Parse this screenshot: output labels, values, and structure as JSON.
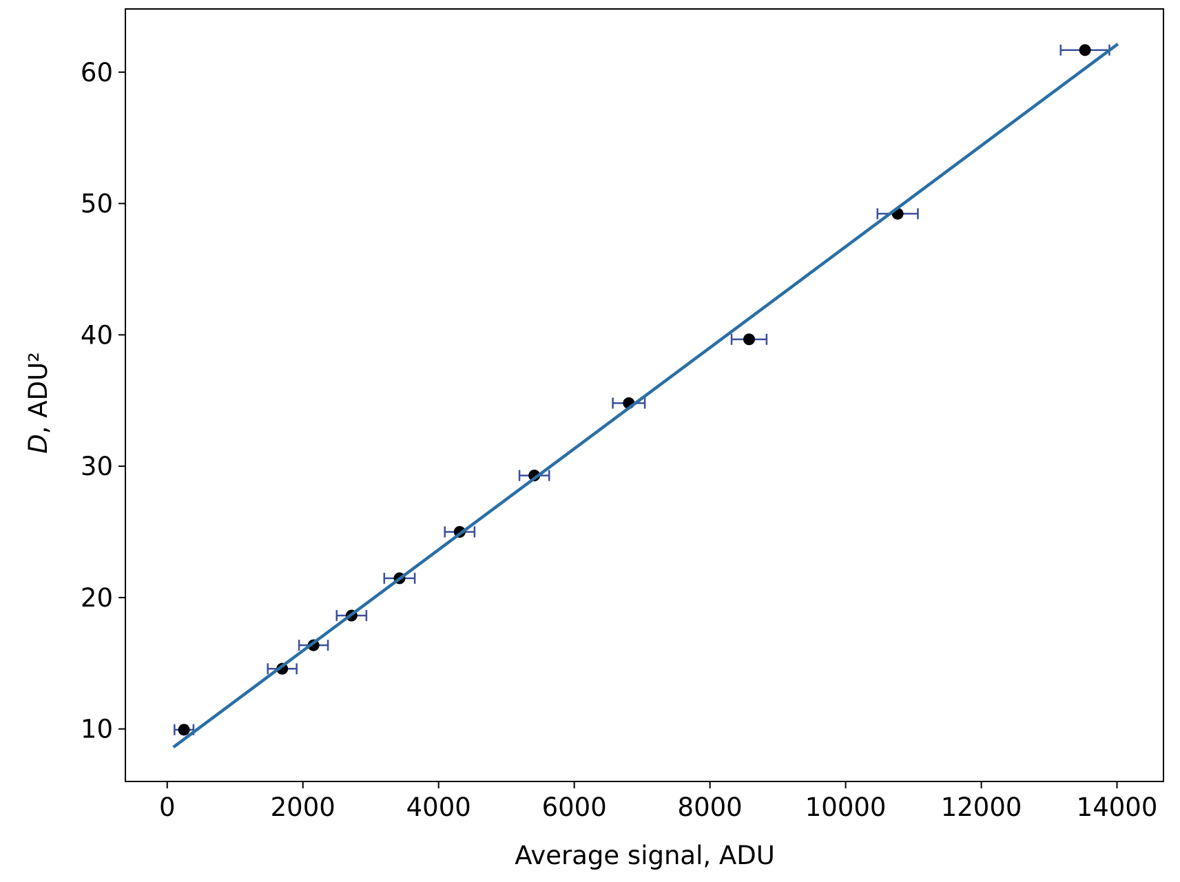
{
  "chart_data": {
    "type": "scatter",
    "x_label": "Average signal, ADU",
    "y_label": {
      "italic": "D",
      "rest": ", ADU²"
    },
    "xlim": [
      -617,
      14685
    ],
    "ylim": [
      6.0,
      64.81
    ],
    "xticks": [
      0,
      2000,
      4000,
      6000,
      8000,
      10000,
      12000,
      14000
    ],
    "yticks": [
      10,
      20,
      30,
      40,
      50,
      60
    ],
    "series": [
      {
        "type": "errorbar",
        "color": "#000000",
        "error_color": "#3a4f9c",
        "x": [
          247,
          1695,
          2156,
          2717,
          3424,
          4311,
          5411,
          6804,
          8577,
          10767,
          13529
        ],
        "values": [
          9.94,
          14.58,
          16.37,
          18.63,
          21.47,
          25.0,
          29.29,
          34.8,
          39.66,
          49.22,
          61.68
        ],
        "xerr": [
          140,
          213,
          213,
          219,
          225,
          219,
          219,
          236,
          258,
          298,
          359
        ]
      },
      {
        "type": "line",
        "color": "#2a6fa6",
        "x": [
          90,
          14012
        ],
        "values": [
          8.61,
          62.14
        ]
      }
    ]
  }
}
